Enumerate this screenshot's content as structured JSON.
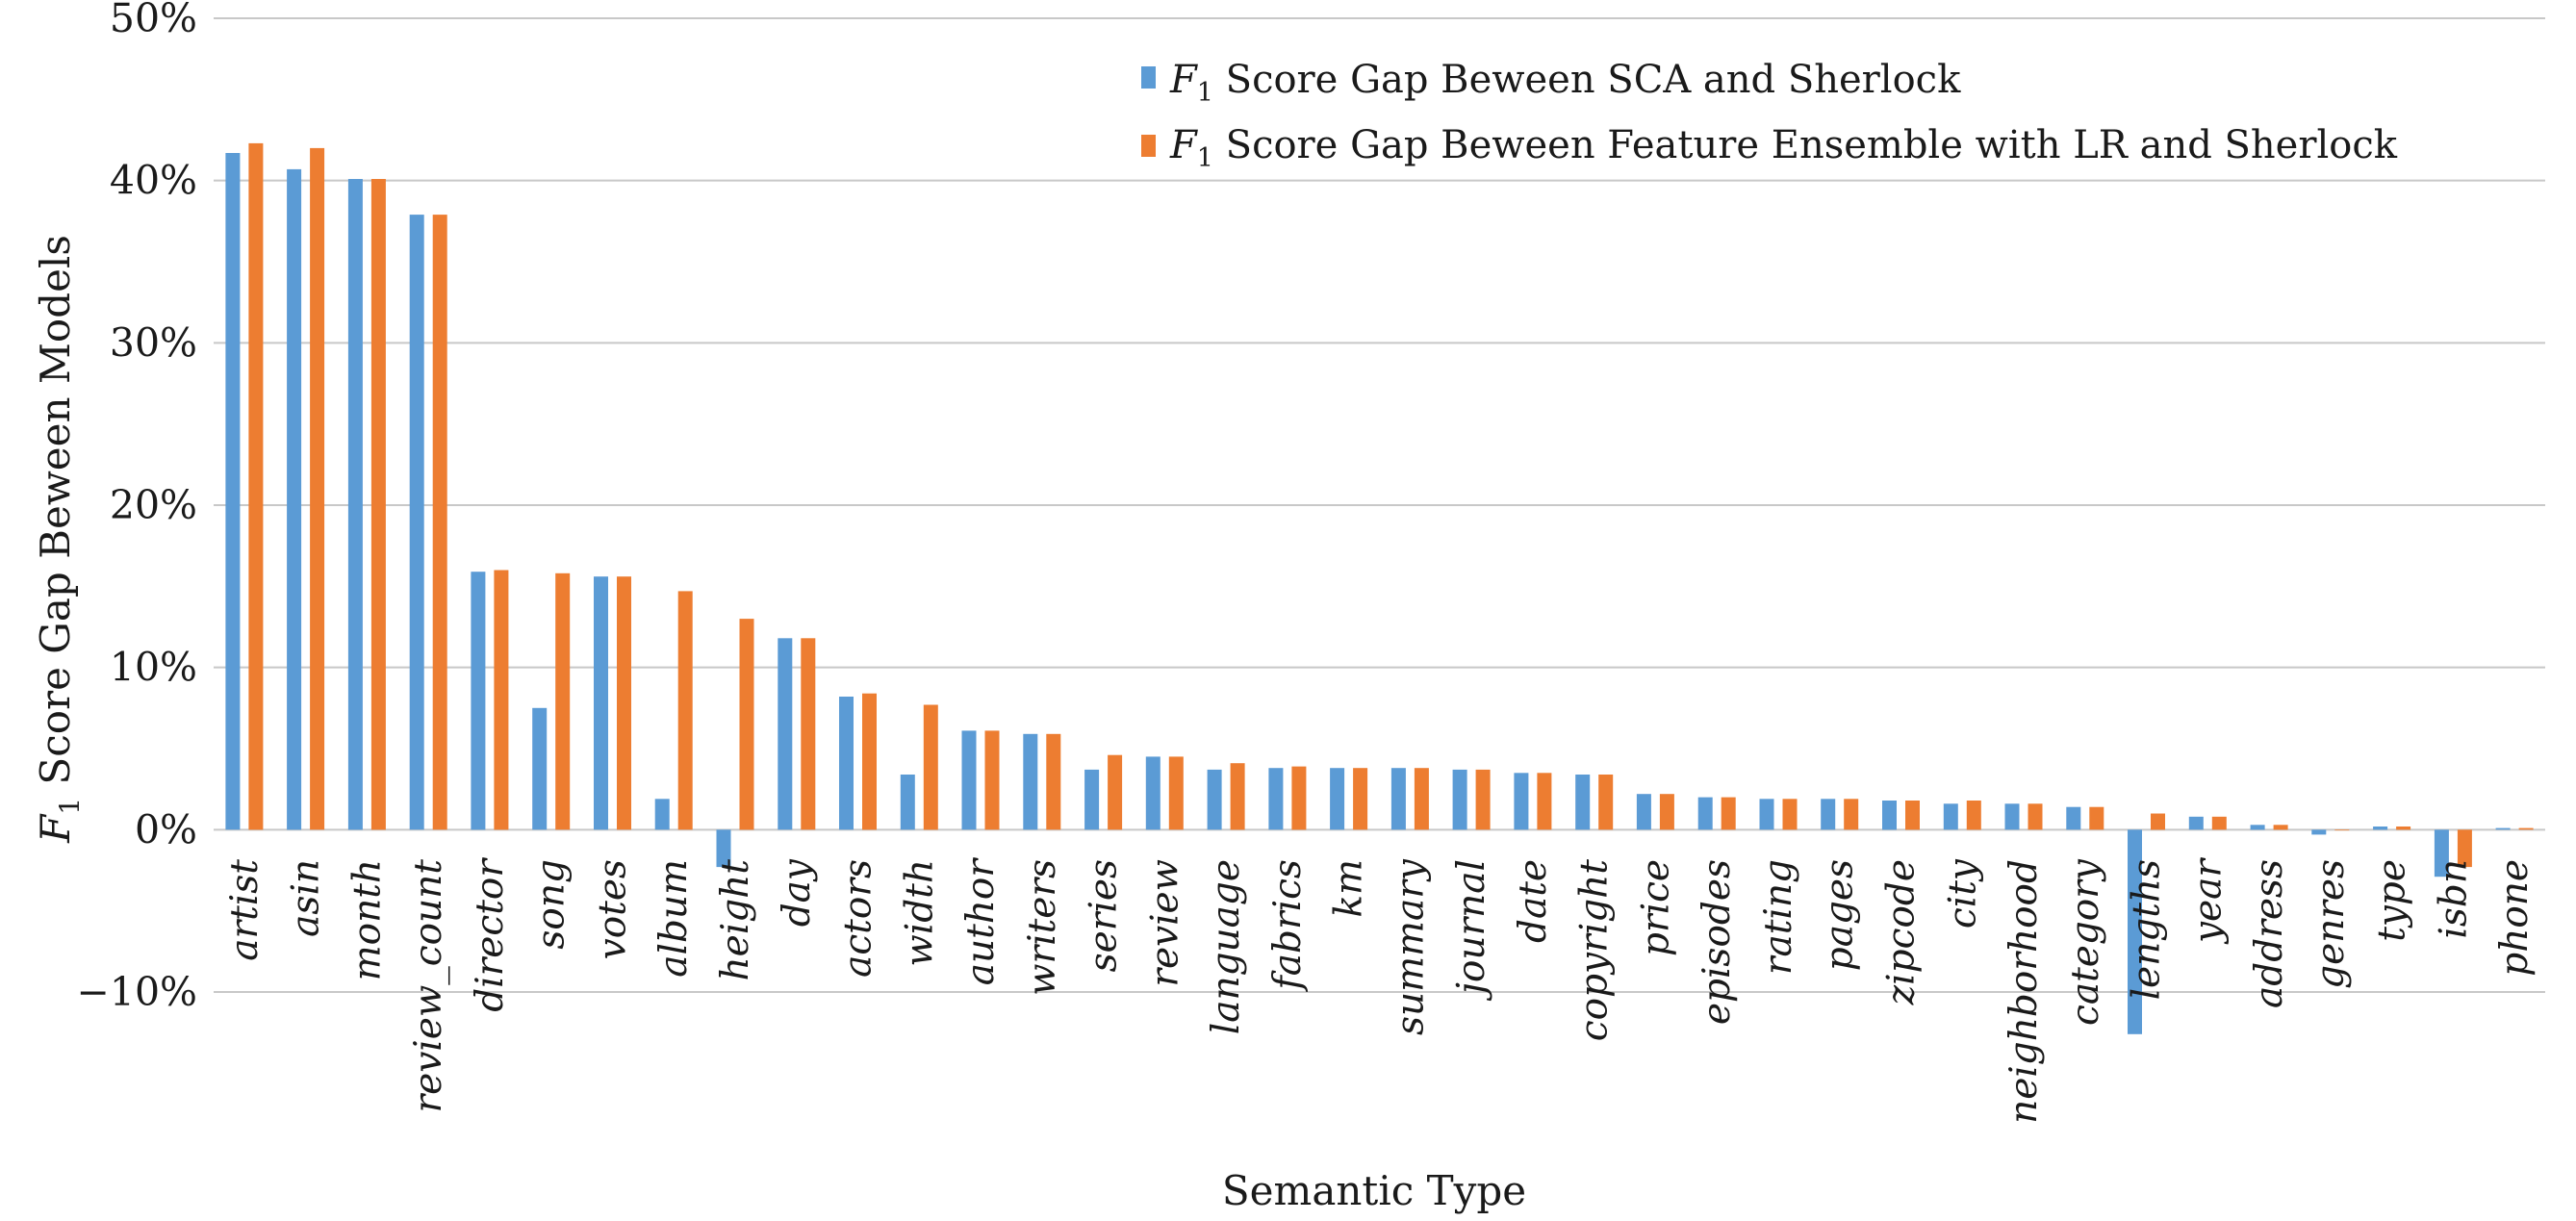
{
  "chart_data": {
    "type": "bar",
    "xlabel": "Semantic Type",
    "ylabel_parts": [
      "F",
      "1",
      " Score Gap Beween Models"
    ],
    "ylim": [
      -10,
      50
    ],
    "y_ticks": [
      -10,
      0,
      10,
      20,
      30,
      40,
      50
    ],
    "y_tick_labels": [
      "−10%",
      "0%",
      "10%",
      "20%",
      "30%",
      "40%",
      "50%"
    ],
    "grid": true,
    "legend_position": "top-right",
    "categories": [
      "artist",
      "asin",
      "month",
      "review_count",
      "director",
      "song",
      "votes",
      "album",
      "height",
      "day",
      "actors",
      "width",
      "author",
      "writers",
      "series",
      "review",
      "language",
      "fabrics",
      "km",
      "summary",
      "journal",
      "date",
      "copyright",
      "price",
      "episodes",
      "rating",
      "pages",
      "zipcode",
      "city",
      "neighborhood",
      "category",
      "lengths",
      "year",
      "address",
      "genres",
      "type",
      "isbn",
      "phone"
    ],
    "series": [
      {
        "name_parts": [
          "F",
          "1",
          " Score Gap Beween SCA and Sherlock"
        ],
        "color": "#5b9bd5",
        "values": [
          41.7,
          40.7,
          40.1,
          37.9,
          15.9,
          7.5,
          15.6,
          1.9,
          -2.3,
          11.8,
          8.2,
          3.4,
          6.1,
          5.9,
          3.7,
          4.5,
          3.7,
          3.8,
          3.8,
          3.8,
          3.7,
          3.5,
          3.4,
          2.2,
          2.0,
          1.9,
          1.9,
          1.8,
          1.6,
          1.6,
          1.4,
          -12.6,
          0.8,
          0.3,
          -0.3,
          0.2,
          -2.9,
          0.1
        ]
      },
      {
        "name_parts": [
          "F",
          "1",
          " Score Gap Beween Feature Ensemble with LR and Sherlock"
        ],
        "color": "#ed7d31",
        "values": [
          42.3,
          42.0,
          40.1,
          37.9,
          16.0,
          15.8,
          15.6,
          14.7,
          13.0,
          11.8,
          8.4,
          7.7,
          6.1,
          5.9,
          4.6,
          4.5,
          4.1,
          3.9,
          3.8,
          3.8,
          3.7,
          3.5,
          3.4,
          2.2,
          2.0,
          1.9,
          1.9,
          1.8,
          1.8,
          1.6,
          1.4,
          1.0,
          0.8,
          0.3,
          0.0,
          0.2,
          -2.3,
          0.1
        ]
      }
    ]
  }
}
